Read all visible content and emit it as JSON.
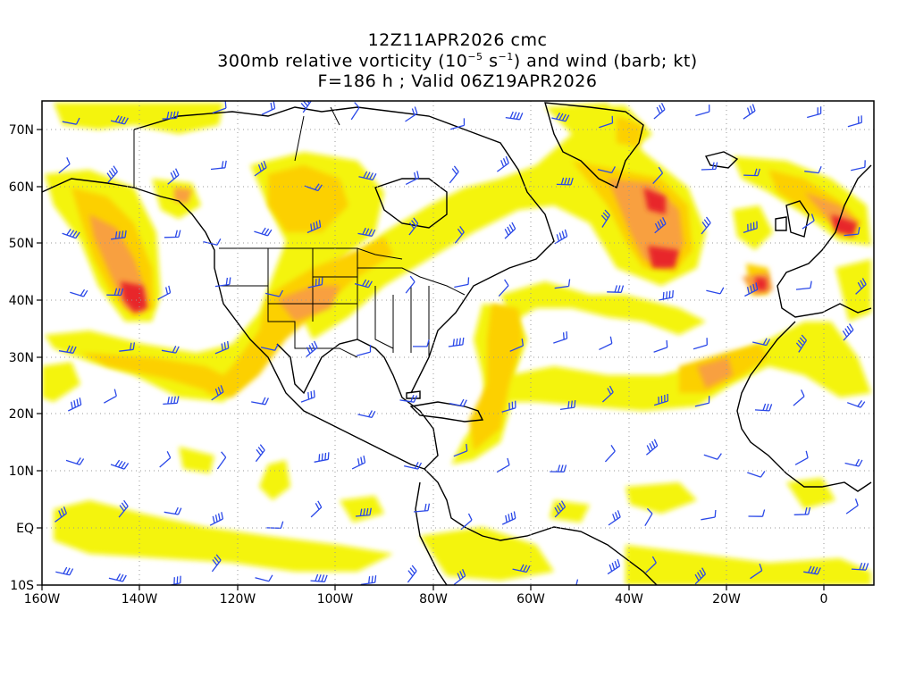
{
  "title": {
    "line1": "12Z11APR2026 cmc",
    "line2_pre": "300mb relative vorticity (10",
    "line2_exp1": "−5",
    "line2_mid": " s",
    "line2_exp2": "−1",
    "line2_post": ") and wind (barb; kt)",
    "line3": "F=186 h ; Valid 06Z19APR2026"
  },
  "lat_labels": [
    "70N",
    "60N",
    "50N",
    "40N",
    "30N",
    "20N",
    "10N",
    "EQ",
    "10S"
  ],
  "lon_labels": [
    "160W",
    "140W",
    "120W",
    "100W",
    "80W",
    "60W",
    "40W",
    "20W",
    "0"
  ],
  "colors": {
    "vort_low": "#f4f40a",
    "vort_mid": "#fcd000",
    "vort_high": "#f8a040",
    "vort_max": "#f06a30",
    "vort_peak": "#e8282a",
    "barb": "#2a48e8",
    "coast": "#000000",
    "grid": "#999999"
  },
  "map": {
    "lon_range": [
      -160,
      10
    ],
    "lat_range": [
      -10,
      75
    ],
    "projection": "cylindrical equidistant",
    "grid_lines": "dotted",
    "field": "300mb relative vorticity",
    "wind": "barbs (kt)"
  }
}
